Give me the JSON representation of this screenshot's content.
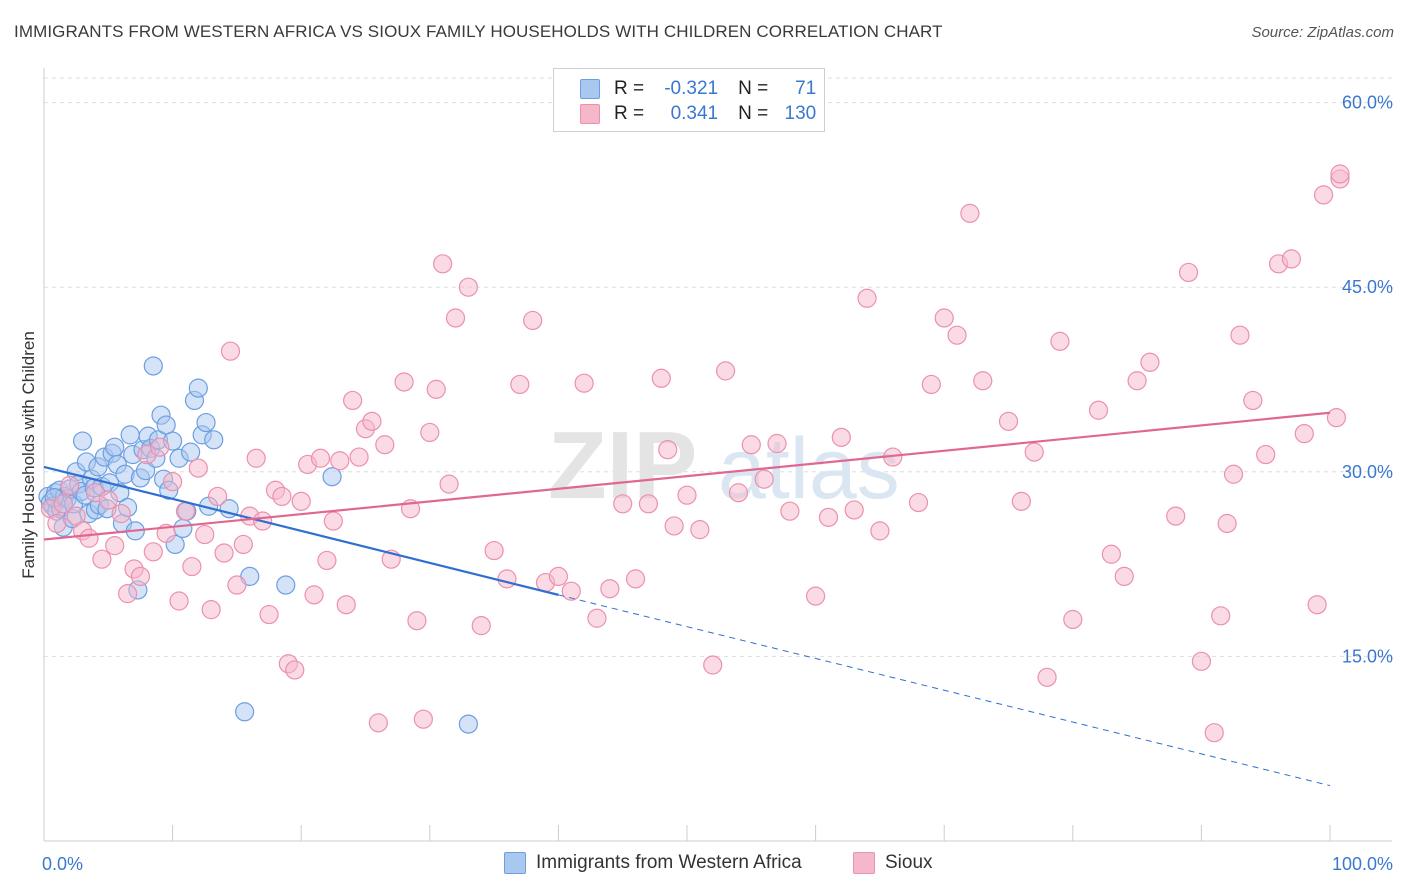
{
  "title": "IMMIGRANTS FROM WESTERN AFRICA VS SIOUX FAMILY HOUSEHOLDS WITH CHILDREN CORRELATION CHART",
  "source": "Source: ZipAtlas.com",
  "watermark": {
    "zip": "ZIP",
    "atlas": "atlas"
  },
  "colors": {
    "blue_fill": "#a9c8f0",
    "blue_stroke": "#6c9fe0",
    "blue_line": "#2e6fd0",
    "pink_fill": "#f5b8cb",
    "pink_stroke": "#ec90ad",
    "pink_line": "#e06890",
    "tick_label": "#3a78d0",
    "grid": "#dddddd"
  },
  "legend": [
    {
      "r_label": "R =",
      "r_value": "-0.321",
      "n_label": "N =",
      "n_value": "71"
    },
    {
      "r_label": "R =",
      "r_value": "0.341",
      "n_label": "N =",
      "n_value": "130"
    }
  ],
  "chart_data": {
    "type": "scatter",
    "title": "IMMIGRANTS FROM WESTERN AFRICA VS SIOUX FAMILY HOUSEHOLDS WITH CHILDREN CORRELATION CHART",
    "xlabel": "",
    "ylabel": "Family Households with Children",
    "xlim": [
      0,
      100
    ],
    "ylim": [
      0,
      62
    ],
    "x_tick_labels": [
      "0.0%",
      "100.0%"
    ],
    "y_ticks": [
      15,
      30,
      45,
      60
    ],
    "y_tick_labels": [
      "15.0%",
      "30.0%",
      "45.0%",
      "60.0%"
    ],
    "grid": true,
    "legend_position": "top-center",
    "series": [
      {
        "name": "Immigrants from Western Africa",
        "r": -0.321,
        "n": 71,
        "trend": {
          "x0": 0,
          "y0": 30.4,
          "x1": 40,
          "y1": 20.0,
          "dashed_to_x": 100,
          "dashed_to_y": 4.5
        },
        "points": [
          [
            0.3,
            28
          ],
          [
            0.5,
            27.5
          ],
          [
            0.7,
            27.2
          ],
          [
            0.9,
            28.3
          ],
          [
            1.0,
            26.8
          ],
          [
            1.2,
            28.5
          ],
          [
            1.3,
            27
          ],
          [
            1.5,
            25.5
          ],
          [
            1.6,
            28
          ],
          [
            1.8,
            27.8
          ],
          [
            2.0,
            28.6
          ],
          [
            2.2,
            26.2
          ],
          [
            2.3,
            27.4
          ],
          [
            2.5,
            30
          ],
          [
            2.7,
            29
          ],
          [
            2.9,
            28.4
          ],
          [
            3.0,
            32.5
          ],
          [
            3.2,
            28.1
          ],
          [
            3.3,
            30.8
          ],
          [
            3.5,
            26.6
          ],
          [
            3.7,
            29.4
          ],
          [
            3.9,
            28.7
          ],
          [
            4.0,
            26.9
          ],
          [
            4.2,
            30.4
          ],
          [
            4.3,
            27.3
          ],
          [
            4.5,
            28.8
          ],
          [
            4.7,
            31.2
          ],
          [
            4.9,
            27
          ],
          [
            5.1,
            29.1
          ],
          [
            5.3,
            31.5
          ],
          [
            5.5,
            32
          ],
          [
            5.7,
            30.6
          ],
          [
            5.9,
            28.3
          ],
          [
            6.1,
            25.8
          ],
          [
            6.3,
            29.8
          ],
          [
            6.5,
            27.1
          ],
          [
            6.7,
            33
          ],
          [
            6.9,
            31.4
          ],
          [
            7.1,
            25.2
          ],
          [
            7.3,
            20.4
          ],
          [
            7.5,
            29.5
          ],
          [
            7.7,
            31.8
          ],
          [
            7.9,
            30.1
          ],
          [
            8.1,
            32.9
          ],
          [
            8.3,
            31.9
          ],
          [
            8.5,
            38.6
          ],
          [
            8.7,
            31.1
          ],
          [
            8.9,
            32.6
          ],
          [
            9.1,
            34.6
          ],
          [
            9.3,
            29.4
          ],
          [
            9.5,
            33.8
          ],
          [
            9.7,
            28.5
          ],
          [
            10.0,
            32.5
          ],
          [
            10.2,
            24.1
          ],
          [
            10.5,
            31.1
          ],
          [
            10.8,
            25.4
          ],
          [
            11.1,
            26.8
          ],
          [
            11.4,
            31.6
          ],
          [
            11.7,
            35.8
          ],
          [
            12.0,
            36.8
          ],
          [
            12.3,
            33
          ],
          [
            12.6,
            34
          ],
          [
            12.8,
            27.2
          ],
          [
            13.2,
            32.6
          ],
          [
            14.4,
            27
          ],
          [
            16.0,
            21.5
          ],
          [
            18.8,
            20.8
          ],
          [
            15.6,
            10.5
          ],
          [
            22.4,
            29.6
          ],
          [
            33.0,
            9.5
          ],
          [
            0.8,
            27.9
          ]
        ]
      },
      {
        "name": "Sioux",
        "r": 0.341,
        "n": 130,
        "trend": {
          "x0": 0,
          "y0": 24.5,
          "x1": 100,
          "y1": 34.8
        },
        "points": [
          [
            0.5,
            27
          ],
          [
            1.0,
            25.8
          ],
          [
            1.5,
            27.4
          ],
          [
            2.0,
            28.9
          ],
          [
            2.5,
            26.4
          ],
          [
            3.0,
            25.2
          ],
          [
            3.5,
            24.6
          ],
          [
            4.0,
            28.3
          ],
          [
            4.5,
            22.9
          ],
          [
            5.0,
            27.7
          ],
          [
            5.5,
            24
          ],
          [
            6.0,
            26.6
          ],
          [
            6.5,
            20.1
          ],
          [
            7.0,
            22.1
          ],
          [
            7.5,
            21.5
          ],
          [
            8.0,
            31.4
          ],
          [
            8.5,
            23.5
          ],
          [
            9.0,
            32
          ],
          [
            9.5,
            25
          ],
          [
            10.0,
            29.2
          ],
          [
            10.5,
            19.5
          ],
          [
            11.0,
            26.8
          ],
          [
            11.5,
            22.3
          ],
          [
            12.0,
            30.3
          ],
          [
            12.5,
            24.9
          ],
          [
            13.0,
            18.8
          ],
          [
            13.5,
            28
          ],
          [
            14.0,
            23.4
          ],
          [
            14.5,
            39.8
          ],
          [
            15.0,
            20.8
          ],
          [
            15.5,
            24.1
          ],
          [
            16.0,
            26.4
          ],
          [
            16.5,
            31.1
          ],
          [
            17.0,
            26
          ],
          [
            17.5,
            18.4
          ],
          [
            18.0,
            28.5
          ],
          [
            18.5,
            28
          ],
          [
            19.0,
            14.4
          ],
          [
            19.5,
            13.9
          ],
          [
            20.0,
            27.6
          ],
          [
            20.5,
            30.6
          ],
          [
            21.0,
            20
          ],
          [
            21.5,
            31.1
          ],
          [
            22.0,
            22.8
          ],
          [
            22.5,
            26
          ],
          [
            23.0,
            30.9
          ],
          [
            23.5,
            19.2
          ],
          [
            24.0,
            35.8
          ],
          [
            24.5,
            31.2
          ],
          [
            25.0,
            33.5
          ],
          [
            25.5,
            34.1
          ],
          [
            26.0,
            9.6
          ],
          [
            26.5,
            32.2
          ],
          [
            27.0,
            22.9
          ],
          [
            28.0,
            37.3
          ],
          [
            28.5,
            27
          ],
          [
            29.0,
            17.9
          ],
          [
            29.5,
            9.9
          ],
          [
            30.0,
            33.2
          ],
          [
            30.5,
            36.7
          ],
          [
            31.0,
            46.9
          ],
          [
            31.5,
            29
          ],
          [
            32.0,
            42.5
          ],
          [
            33.0,
            45
          ],
          [
            34.0,
            17.5
          ],
          [
            35.0,
            23.6
          ],
          [
            36.0,
            21.3
          ],
          [
            37.0,
            37.1
          ],
          [
            38.0,
            42.3
          ],
          [
            39.0,
            21
          ],
          [
            40.0,
            21.5
          ],
          [
            41.0,
            20.3
          ],
          [
            42.0,
            37.2
          ],
          [
            43.0,
            18.1
          ],
          [
            44.0,
            20.5
          ],
          [
            45.0,
            27.4
          ],
          [
            46.0,
            21.3
          ],
          [
            47.0,
            27.4
          ],
          [
            48.0,
            37.6
          ],
          [
            48.5,
            31.8
          ],
          [
            49.0,
            25.6
          ],
          [
            50.0,
            28.1
          ],
          [
            51.0,
            25.3
          ],
          [
            52.0,
            14.3
          ],
          [
            53.0,
            38.2
          ],
          [
            54.0,
            28.3
          ],
          [
            55.0,
            32.2
          ],
          [
            56.0,
            29.4
          ],
          [
            57.0,
            32.3
          ],
          [
            58.0,
            26.8
          ],
          [
            60.0,
            19.9
          ],
          [
            61.0,
            26.3
          ],
          [
            62.0,
            32.8
          ],
          [
            63.0,
            26.9
          ],
          [
            64.0,
            44.1
          ],
          [
            65.0,
            25.2
          ],
          [
            66.0,
            31.2
          ],
          [
            68.0,
            27.5
          ],
          [
            69.0,
            37.1
          ],
          [
            70.0,
            42.5
          ],
          [
            71.0,
            41.1
          ],
          [
            72.0,
            51
          ],
          [
            73.0,
            37.4
          ],
          [
            75.0,
            34.1
          ],
          [
            76.0,
            27.6
          ],
          [
            77.0,
            31.6
          ],
          [
            78.0,
            13.3
          ],
          [
            79.0,
            40.6
          ],
          [
            80.0,
            18
          ],
          [
            82.0,
            35
          ],
          [
            83.0,
            23.3
          ],
          [
            84.0,
            21.5
          ],
          [
            85.0,
            37.4
          ],
          [
            86.0,
            38.9
          ],
          [
            88.0,
            26.4
          ],
          [
            89.0,
            46.2
          ],
          [
            90.0,
            14.6
          ],
          [
            91.0,
            8.8
          ],
          [
            91.5,
            18.3
          ],
          [
            92.0,
            25.8
          ],
          [
            92.5,
            29.8
          ],
          [
            93.0,
            41.1
          ],
          [
            94.0,
            35.8
          ],
          [
            95.0,
            31.4
          ],
          [
            96.0,
            46.9
          ],
          [
            97.0,
            47.3
          ],
          [
            98.0,
            33.1
          ],
          [
            99.0,
            19.2
          ],
          [
            99.5,
            52.5
          ],
          [
            100.5,
            34.4
          ],
          [
            101.0,
            53.8
          ],
          [
            103.0,
            54.2
          ]
        ]
      }
    ]
  }
}
